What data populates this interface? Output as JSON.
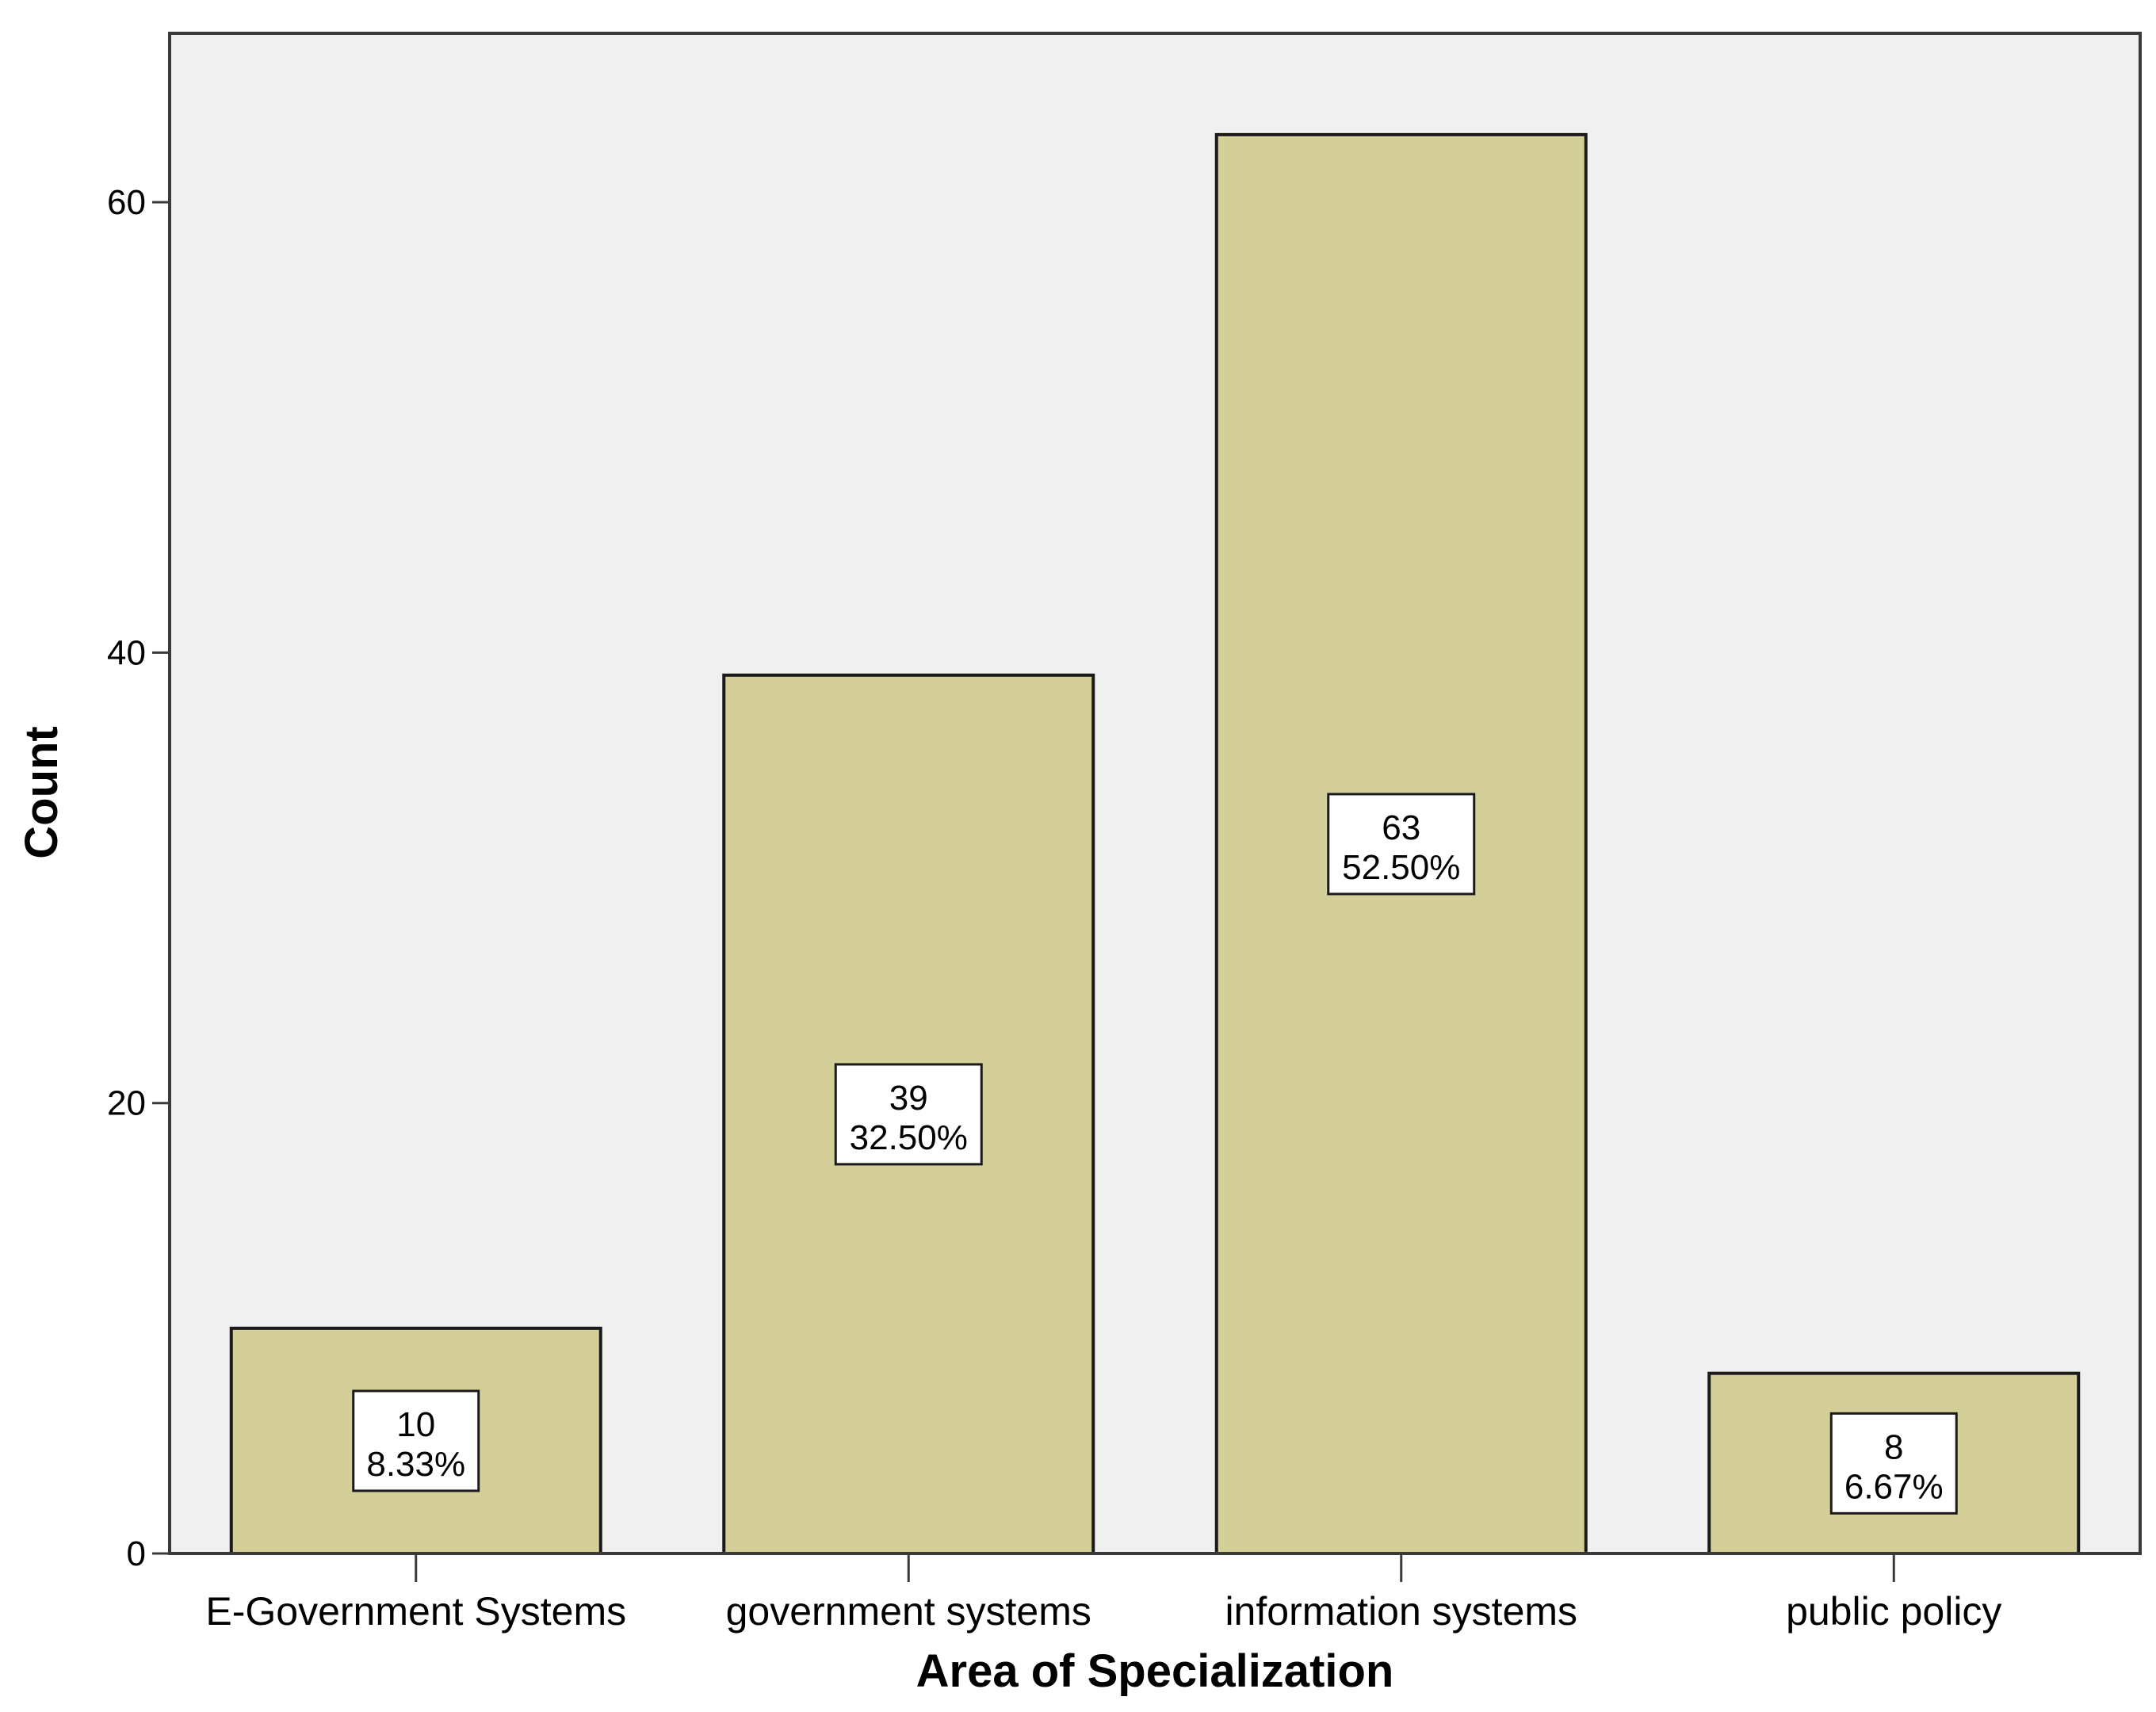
{
  "chart_data": {
    "type": "bar",
    "categories": [
      "E-Government Systems",
      "government systems",
      "information systems",
      "public policy"
    ],
    "values": [
      10,
      39,
      63,
      8
    ],
    "percent_labels": [
      "8.33%",
      "32.50%",
      "52.50%",
      "6.67%"
    ],
    "title": "",
    "xlabel": "Area of Specialization",
    "ylabel": "Count",
    "ylim": [
      0,
      67.5
    ],
    "yticks": [
      0,
      20,
      40,
      60
    ],
    "grid": false,
    "legend": "none",
    "colors": {
      "bar_fill": "#d4cf98",
      "bar_stroke": "#1a1a1a",
      "plot_background": "#f0f0f0",
      "label_box": "#ffffff"
    }
  }
}
